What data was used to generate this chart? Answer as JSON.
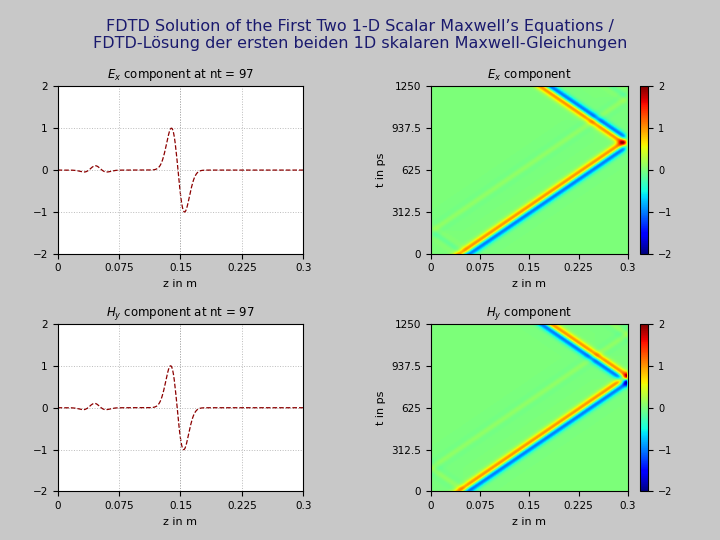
{
  "title_line1": "FDTD Solution of the First Two 1-D Scalar Maxwell’s Equations /",
  "title_line2": "FDTD-Lösung der ersten beiden 1D skalaren Maxwell-Gleichungen",
  "title_color": "#1a1a6e",
  "title_fontsize": 11.5,
  "fig_bg_color": "#c8c8c8",
  "xlabel": "z in m",
  "ylabel_time": "t in ps",
  "xlim": [
    0,
    0.3
  ],
  "ylim_wave": [
    -2,
    2
  ],
  "ylim_time": [
    0,
    1250
  ],
  "xticks": [
    0,
    0.075,
    0.15,
    0.225,
    0.3
  ],
  "yticks_wave": [
    -2,
    -1,
    0,
    1,
    2
  ],
  "yticks_time": [
    0,
    312.5,
    625,
    937.5,
    1250
  ],
  "clim": [
    -2,
    2
  ],
  "wave_color": "#8b0000",
  "wave_linestyle": "--",
  "grid_color": "#bbbbbb",
  "colormap": "jet"
}
